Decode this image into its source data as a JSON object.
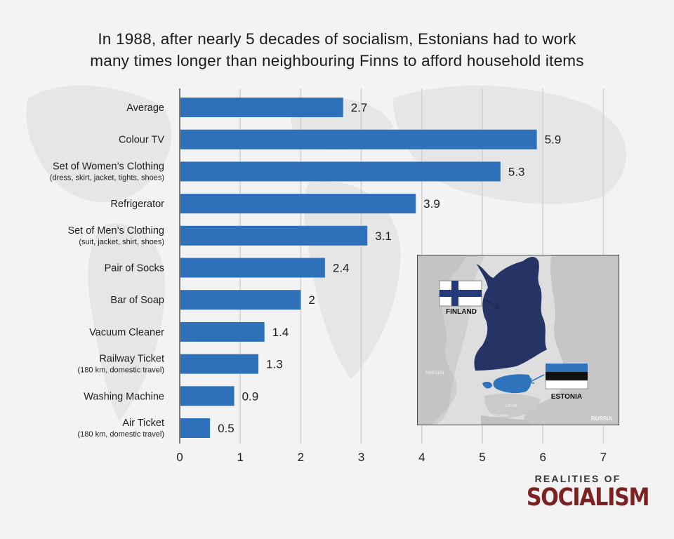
{
  "title_line1": "In 1988, after nearly 5 decades of socialism, Estonians had to work",
  "title_line2": "many times longer than neighbouring Finns to afford household items",
  "chart_data": {
    "type": "bar",
    "orientation": "horizontal",
    "title": "In 1988, after nearly 5 decades of socialism, Estonians had to work many times longer than neighbouring Finns to afford household items",
    "categories": [
      {
        "label": "Average",
        "sub": ""
      },
      {
        "label": "Colour TV",
        "sub": ""
      },
      {
        "label": "Set of Women’s Clothing",
        "sub": "(dress, skirt, jacket, tights, shoes)"
      },
      {
        "label": "Refrigerator",
        "sub": ""
      },
      {
        "label": "Set of Men’s Clothing",
        "sub": "(suit, jacket, shirt, shoes)"
      },
      {
        "label": "Pair of Socks",
        "sub": ""
      },
      {
        "label": "Bar of Soap",
        "sub": ""
      },
      {
        "label": "Vacuum Cleaner",
        "sub": ""
      },
      {
        "label": "Railway Ticket",
        "sub": "(180 km, domestic travel)"
      },
      {
        "label": "Washing Machine",
        "sub": ""
      },
      {
        "label": "Air Ticket",
        "sub": "(180 km, domestic travel)"
      }
    ],
    "values": [
      2.7,
      5.9,
      5.3,
      3.9,
      3.1,
      2.4,
      2,
      1.4,
      1.3,
      0.9,
      0.5
    ],
    "value_labels": [
      "2.7",
      "5.9",
      "5.3",
      "3.9",
      "3.1",
      "2.4",
      "2",
      "1.4",
      "1.3",
      "0.9",
      "0.5"
    ],
    "xlim": [
      0,
      7
    ],
    "xticks": [
      0,
      1,
      2,
      3,
      4,
      5,
      6,
      7
    ],
    "xlabel": "",
    "ylabel": "",
    "grid": true,
    "bar_color": "#2e70ba"
  },
  "map": {
    "finland_label": "FINLAND",
    "estonia_label": "ESTONIA",
    "sweden_label": "SWEDEN",
    "russia_label": "RUSSIA",
    "latvia_label": "LATVIA",
    "lithuania_label": "LITHUANIA",
    "finland_color": "#253464",
    "estonia_color": "#2f73bd"
  },
  "brand": {
    "top": "REALITIES OF",
    "main": "SOCIALISM",
    "color": "#7d2222"
  }
}
